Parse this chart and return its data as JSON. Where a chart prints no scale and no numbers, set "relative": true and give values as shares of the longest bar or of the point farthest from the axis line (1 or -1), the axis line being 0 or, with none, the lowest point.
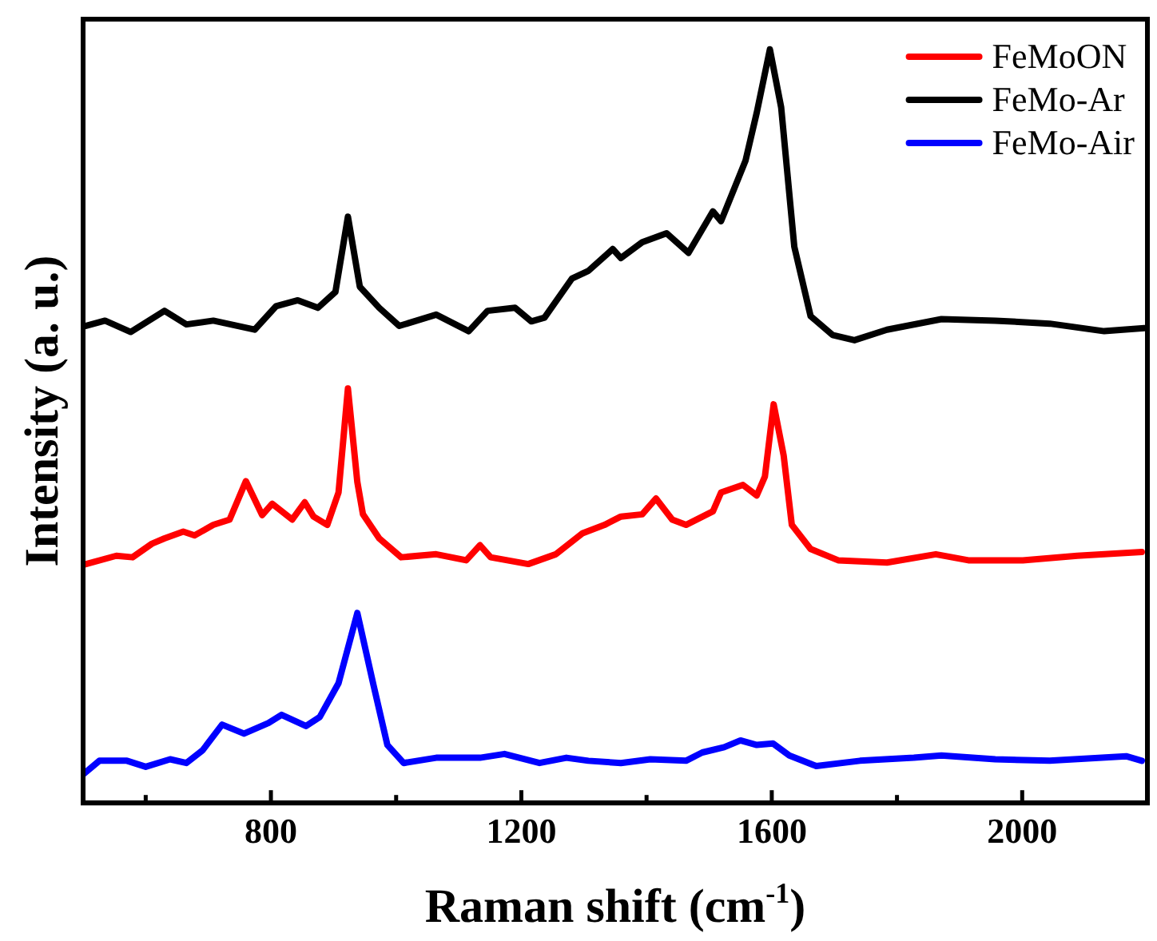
{
  "chart_data": {
    "type": "line",
    "xlabel": "Raman shift (cm$^{-1}$)",
    "ylabel": "Intensity (a. u.)",
    "relative": true,
    "xlim": [
      500,
      2200
    ],
    "xticks": [
      {
        "value": 600,
        "label": null
      },
      800,
      {
        "value": 1000,
        "label": null
      },
      1200,
      {
        "value": 1400,
        "label": null
      },
      1600,
      {
        "value": 1800,
        "label": null
      },
      2000,
      {
        "value": 2200,
        "label": null
      }
    ],
    "legend": "top right",
    "grid": false,
    "marker": "none",
    "line_style": "solid",
    "series": [
      {
        "name": "FeMoON",
        "color": "#ff0000",
        "x": [
          500,
          553,
          579,
          610,
          630,
          660,
          678,
          708,
          734,
          760,
          786,
          802,
          834,
          854,
          868,
          890,
          908,
          923,
          938,
          947,
          973,
          1008,
          1064,
          1112,
          1134,
          1151,
          1211,
          1255,
          1298,
          1333,
          1359,
          1393,
          1415,
          1441,
          1463,
          1506,
          1519,
          1554,
          1576,
          1589,
          1603,
          1619,
          1632,
          1662,
          1706,
          1784,
          1862,
          1914,
          2001,
          2088,
          2191
        ],
        "values": [
          0.316,
          0.328,
          0.326,
          0.344,
          0.351,
          0.36,
          0.355,
          0.369,
          0.376,
          0.427,
          0.382,
          0.397,
          0.376,
          0.399,
          0.38,
          0.369,
          0.412,
          0.55,
          0.426,
          0.383,
          0.351,
          0.326,
          0.33,
          0.322,
          0.342,
          0.326,
          0.317,
          0.33,
          0.358,
          0.369,
          0.38,
          0.383,
          0.404,
          0.376,
          0.369,
          0.387,
          0.412,
          0.422,
          0.408,
          0.433,
          0.529,
          0.461,
          0.369,
          0.337,
          0.322,
          0.319,
          0.33,
          0.322,
          0.322,
          0.328,
          0.333
        ]
      },
      {
        "name": "FeMo-Ar",
        "color": "#000000",
        "x": [
          500,
          535,
          576,
          630,
          665,
          708,
          774,
          808,
          843,
          875,
          903,
          923,
          942,
          973,
          1005,
          1064,
          1116,
          1146,
          1190,
          1216,
          1237,
          1281,
          1307,
          1346,
          1359,
          1393,
          1432,
          1467,
          1506,
          1519,
          1558,
          1576,
          1597,
          1615,
          1636,
          1662,
          1697,
          1732,
          1784,
          1871,
          1957,
          2044,
          2131,
          2195
        ],
        "values": [
          0.632,
          0.64,
          0.625,
          0.653,
          0.635,
          0.64,
          0.628,
          0.659,
          0.667,
          0.657,
          0.678,
          0.778,
          0.685,
          0.657,
          0.633,
          0.648,
          0.626,
          0.653,
          0.657,
          0.639,
          0.644,
          0.696,
          0.706,
          0.735,
          0.723,
          0.744,
          0.756,
          0.73,
          0.785,
          0.772,
          0.852,
          0.916,
          1,
          0.923,
          0.738,
          0.646,
          0.621,
          0.614,
          0.628,
          0.642,
          0.64,
          0.636,
          0.626,
          0.63
        ]
      },
      {
        "name": "FeMo-Air",
        "color": "#0000ff",
        "x": [
          500,
          526,
          570,
          600,
          639,
          665,
          691,
          722,
          757,
          796,
          817,
          856,
          878,
          908,
          938,
          964,
          986,
          1012,
          1064,
          1134,
          1173,
          1229,
          1272,
          1307,
          1359,
          1406,
          1463,
          1489,
          1524,
          1550,
          1576,
          1602,
          1628,
          1671,
          1741,
          1827,
          1871,
          1957,
          2044,
          2166,
          2191
        ],
        "values": [
          0.038,
          0.056,
          0.056,
          0.048,
          0.058,
          0.053,
          0.07,
          0.104,
          0.092,
          0.106,
          0.117,
          0.102,
          0.114,
          0.159,
          0.252,
          0.156,
          0.077,
          0.053,
          0.06,
          0.06,
          0.065,
          0.053,
          0.06,
          0.056,
          0.053,
          0.058,
          0.056,
          0.067,
          0.074,
          0.083,
          0.077,
          0.079,
          0.063,
          0.049,
          0.056,
          0.06,
          0.063,
          0.058,
          0.056,
          0.062,
          0.056
        ]
      }
    ]
  }
}
